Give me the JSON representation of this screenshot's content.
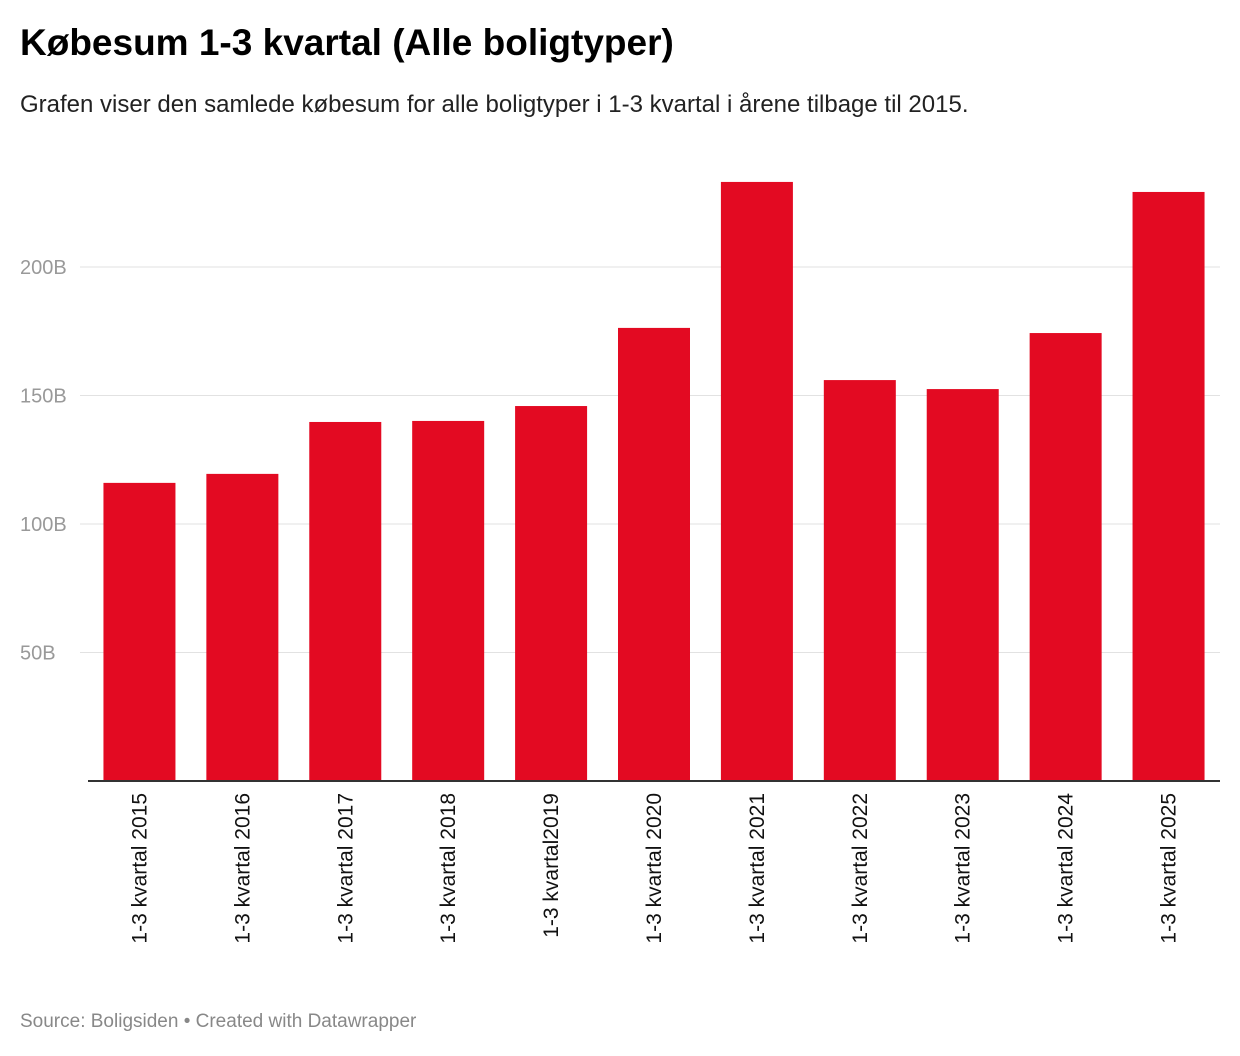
{
  "chart_data": {
    "type": "bar",
    "title": "Købesum 1-3 kvartal (Alle boligtyper)",
    "subtitle": "Grafen viser den samlede købesum for alle boligtyper i 1-3 kvartal i årene tilbage til 2015.",
    "categories": [
      "1-3 kvartal 2015",
      "1-3 kvartal 2016",
      "1-3 kvartal 2017",
      "1-3 kvartal 2018",
      "1-3 kvartal2019",
      "1-3 kvartal 2020",
      "1-3 kvartal 2021",
      "1-3 kvartal 2022",
      "1-3 kvartal 2023",
      "1-3 kvartal 2024",
      "1-3 kvartal 2025"
    ],
    "values": [
      116,
      119.5,
      139.7,
      140.1,
      145.9,
      176.3,
      233.1,
      156.0,
      152.5,
      174.3,
      229.2
    ],
    "unit": "B",
    "xlabel": "",
    "ylabel": "",
    "ylim": [
      0,
      233.1
    ],
    "yticks": [
      50,
      100,
      150,
      200
    ],
    "ytick_labels": [
      "50B",
      "100B",
      "150B",
      "200B"
    ],
    "grid": true,
    "bar_color": "#e30a22"
  },
  "footer": "Source: Boligsiden • Created with Datawrapper"
}
